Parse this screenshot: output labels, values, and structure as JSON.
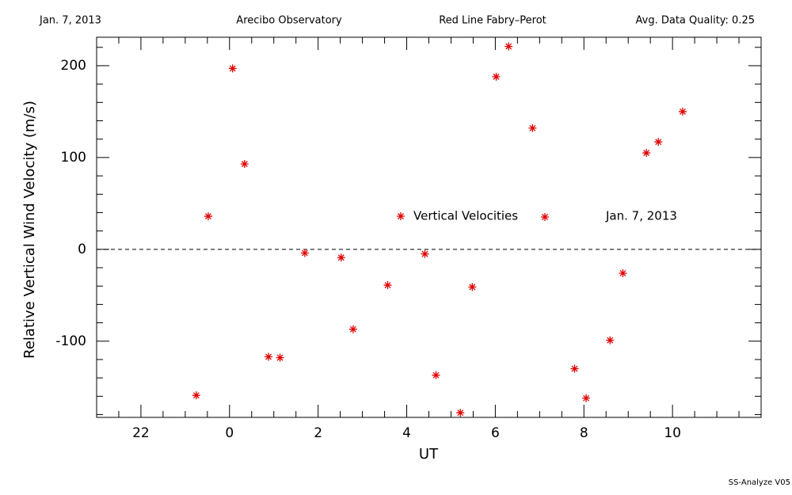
{
  "chart_data": {
    "type": "scatter",
    "header": [
      "Jan. 7, 2013",
      "Arecibo Observatory",
      "Red Line Fabry–Perot",
      "Avg. Data Quality: 0.25"
    ],
    "x_label": "UT",
    "y_label": "Relative Vertical Wind Velocity (m/s)",
    "footer": "SS-Analyze V05",
    "annotation": "Jan. 7, 2013",
    "zero_line": true,
    "series": [
      {
        "name": "Vertical Velocities",
        "color": "#e00000",
        "x": [
          -0.75,
          -0.48,
          0.07,
          0.34,
          0.88,
          1.14,
          1.7,
          2.52,
          2.79,
          3.57,
          4.41,
          4.66,
          5.21,
          5.48,
          6.02,
          6.3,
          6.84,
          7.79,
          8.05,
          8.59,
          8.88,
          9.41,
          9.68,
          10.23
        ],
        "values": [
          -159,
          36,
          197,
          93,
          -117,
          -118,
          -4,
          -9,
          -87,
          -39,
          -5,
          -137,
          -178,
          -41,
          188,
          221,
          132,
          -130,
          -162,
          -99,
          -26,
          105,
          117,
          150
        ]
      }
    ],
    "xlim": [
      -3,
      12
    ],
    "ylim": [
      -183,
      231
    ],
    "xticks": [
      {
        "value": -2,
        "label": "22"
      },
      0,
      2,
      4,
      6,
      8,
      10
    ],
    "yticks": [
      -100,
      0,
      100,
      200
    ],
    "xminorticks": [
      -2.5,
      -1.5,
      -1,
      -0.5,
      0.5,
      1,
      1.5,
      2.5,
      3,
      3.5,
      4.5,
      5,
      5.5,
      6.5,
      7,
      7.5,
      8.5,
      9,
      9.5,
      10.5,
      11,
      11.5
    ],
    "yminorticks": [
      -180,
      -160,
      -140,
      -120,
      -80,
      -60,
      -40,
      -20,
      20,
      40,
      60,
      80,
      120,
      140,
      160,
      180,
      220
    ]
  }
}
